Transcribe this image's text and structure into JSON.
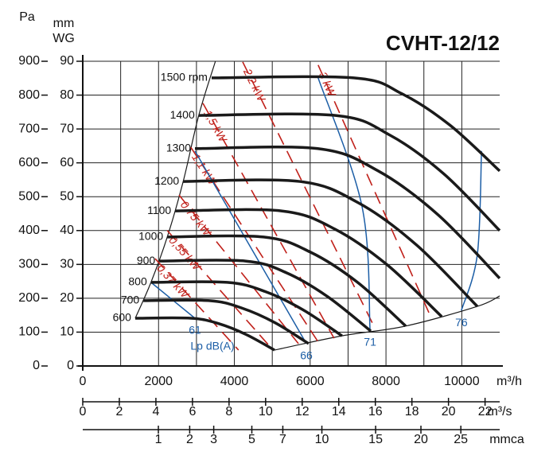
{
  "chart_data": {
    "type": "fan",
    "title": "CVHT-12/12",
    "ylabel": "Pa",
    "y2label": [
      "mm",
      "WG"
    ],
    "ylim": [
      0,
      900
    ],
    "yticks": [
      0,
      100,
      200,
      300,
      400,
      500,
      600,
      700,
      800,
      900
    ],
    "y2lim": [
      0,
      90
    ],
    "y2ticks": [
      0,
      10,
      20,
      30,
      40,
      50,
      60,
      70,
      80,
      90
    ],
    "xlabel": "m³/h",
    "xlim": [
      0,
      11000
    ],
    "xticks": [
      0,
      2000,
      4000,
      6000,
      8000,
      10000
    ],
    "xminor": [
      1000,
      3000,
      5000,
      7000,
      9000
    ],
    "grid": true,
    "x2": {
      "label": "m³/s",
      "lim": [
        0,
        22.8
      ],
      "ticks": [
        0,
        2,
        4,
        6,
        8,
        10,
        12,
        14,
        16,
        18,
        20,
        22
      ]
    },
    "x3": {
      "label": "mmca",
      "lim": [
        0,
        30.4
      ],
      "scale": "sqrt",
      "ticks": [
        1,
        2,
        3,
        5,
        7,
        10,
        15,
        20,
        25
      ]
    },
    "speed_color": "#1a1a1a",
    "speed_curves": [
      {
        "name": "1500 rpm",
        "x": [
          3400,
          7150,
          8420,
          9690,
          11000
        ],
        "y": [
          851,
          851,
          804,
          711,
          576
        ]
      },
      {
        "name": "1400",
        "x": [
          3060,
          6670,
          8100,
          9530,
          11000
        ],
        "y": [
          740,
          740,
          682,
          567,
          400
        ]
      },
      {
        "name": "1300",
        "x": [
          2960,
          6200,
          7780,
          9370,
          11000
        ],
        "y": [
          642,
          642,
          577,
          447,
          259
        ]
      },
      {
        "name": "1200",
        "x": [
          2650,
          5720,
          7270,
          8810,
          10410
        ],
        "y": [
          545,
          545,
          482,
          357,
          176
        ]
      },
      {
        "name": "1100",
        "x": [
          2440,
          5240,
          6640,
          8030,
          9470
        ],
        "y": [
          458,
          458,
          405,
          299,
          146
        ]
      },
      {
        "name": "1000",
        "x": [
          2230,
          4770,
          6010,
          7250,
          8520
        ],
        "y": [
          381,
          381,
          336,
          247,
          118
        ]
      },
      {
        "name": "900",
        "x": [
          2020,
          4290,
          5380,
          6470,
          7600
        ],
        "y": [
          310,
          310,
          275,
          204,
          103
        ]
      },
      {
        "name": "800",
        "x": [
          1800,
          3810,
          4810,
          5810,
          6840
        ],
        "y": [
          247,
          247,
          220,
          166,
          89
        ]
      },
      {
        "name": "700",
        "x": [
          1600,
          3340,
          4200,
          5070,
          5960
        ],
        "y": [
          193,
          193,
          171,
          128,
          66
        ]
      },
      {
        "name": "600",
        "x": [
          1385,
          2860,
          3590,
          4310,
          5060
        ],
        "y": [
          141,
          141,
          125,
          93,
          47
        ]
      }
    ],
    "power_color": "#c0201a",
    "power_lines": [
      {
        "name": "3 kW",
        "x": [
          6210,
          9150
        ],
        "y": [
          889,
          153
        ]
      },
      {
        "name": "2,2 kW",
        "x": [
          4220,
          7680
        ],
        "y": [
          898,
          118
        ]
      },
      {
        "name": "1,5 kW",
        "x": [
          3170,
          6630
        ],
        "y": [
          776,
          82
        ]
      },
      {
        "name": "1,1 kW",
        "x": [
          2850,
          6210
        ],
        "y": [
          646,
          71
        ]
      },
      {
        "name": "0,75 kW",
        "x": [
          2540,
          5690
        ],
        "y": [
          505,
          66
        ]
      },
      {
        "name": "0,55 kW",
        "x": [
          2230,
          4950
        ],
        "y": [
          400,
          56
        ]
      },
      {
        "name": "0,37 kW",
        "x": [
          1910,
          4110
        ],
        "y": [
          317,
          47
        ]
      }
    ],
    "noise_color": "#1c5ea6",
    "noise_title": "Lp dB(A)",
    "noise_lines": [
      {
        "name": 61,
        "x": [
          1800,
          2960
        ],
        "y": [
          247,
          141
        ]
      },
      {
        "name": 66,
        "x": [
          2960,
          5900
        ],
        "y": [
          635,
          66
        ]
      },
      {
        "name": 71,
        "x": [
          6210,
          7370,
          7580
        ],
        "y": [
          851,
          470,
          106
        ]
      },
      {
        "name": 76,
        "x": [
          10520,
          10410,
          9990
        ],
        "y": [
          635,
          329,
          164
        ]
      }
    ],
    "limit_color": "#1a1a1a",
    "left_limit": {
      "x": [
        1385,
        1800,
        2230,
        2650,
        3060,
        3500
      ],
      "y": [
        141,
        247,
        381,
        545,
        740,
        900
      ]
    },
    "bottom_limit": {
      "x": [
        5060,
        6840,
        8520,
        10410,
        11000
      ],
      "y": [
        47,
        89,
        118,
        176,
        207
      ]
    }
  }
}
